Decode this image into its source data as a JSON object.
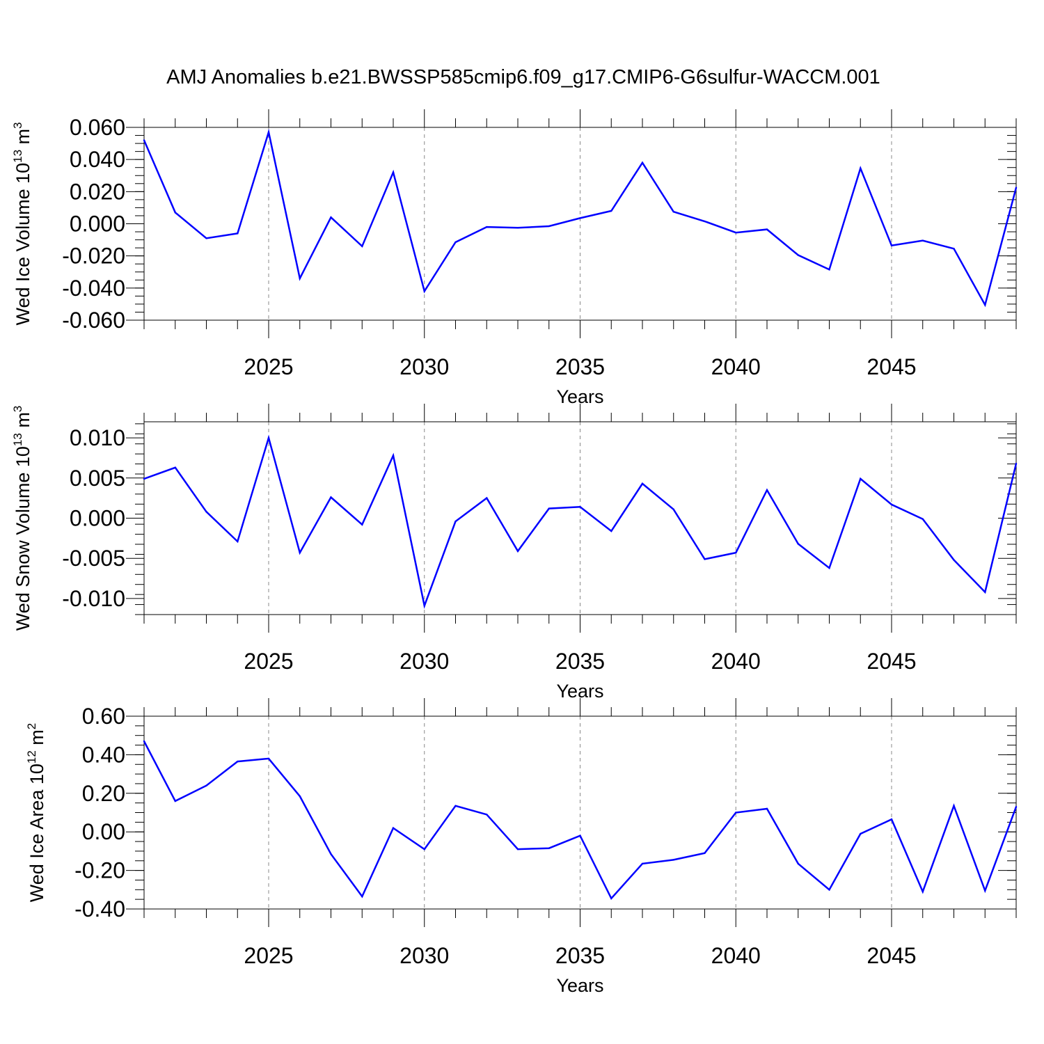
{
  "title": "AMJ Anomalies b.e21.BWSSP585cmip6.f09_g17.CMIP6-G6sulfur-WACCM.001",
  "colors": {
    "series": "#0000ff",
    "axis": "#000000",
    "grid": "#888888"
  },
  "chart_data": [
    {
      "type": "line",
      "ylabel": {
        "main": "Wed Ice Volume 10",
        "exp": "13",
        "unit": "m",
        "unit_exp": "3"
      },
      "xlabel": "Years",
      "xlim": [
        2021,
        2049
      ],
      "ylim": [
        -0.06,
        0.06
      ],
      "yticks": [
        -0.06,
        -0.04,
        -0.02,
        0.0,
        0.02,
        0.04,
        0.06
      ],
      "ytick_labels": [
        "-0.060",
        "-0.040",
        "-0.020",
        "0.000",
        "0.020",
        "0.040",
        "0.060"
      ],
      "xticks": [
        2025,
        2030,
        2035,
        2040,
        2045
      ],
      "xtick_labels": [
        "2025",
        "2030",
        "2035",
        "2040",
        "2045"
      ],
      "grid": "dashed vertical at major x ticks",
      "x": [
        2021,
        2022,
        2023,
        2024,
        2025,
        2026,
        2027,
        2028,
        2029,
        2030,
        2031,
        2032,
        2033,
        2034,
        2035,
        2036,
        2037,
        2038,
        2039,
        2040,
        2041,
        2042,
        2043,
        2044,
        2045,
        2046,
        2047,
        2048,
        2049
      ],
      "values": [
        0.052,
        0.007,
        -0.009,
        -0.006,
        0.057,
        -0.034,
        0.004,
        -0.014,
        0.032,
        -0.042,
        -0.0115,
        -0.002,
        -0.0025,
        -0.0015,
        0.0035,
        0.008,
        0.038,
        0.0075,
        0.0015,
        -0.0055,
        -0.0035,
        -0.0195,
        -0.0285,
        0.0345,
        -0.0135,
        -0.0105,
        -0.0155,
        -0.0505,
        0.0225
      ]
    },
    {
      "type": "line",
      "ylabel": {
        "main": "Wed Snow Volume 10",
        "exp": "13",
        "unit": "m",
        "unit_exp": "3"
      },
      "xlabel": "Years",
      "xlim": [
        2021,
        2049
      ],
      "ylim": [
        -0.012,
        0.012
      ],
      "yticks": [
        -0.01,
        -0.005,
        0.0,
        0.005,
        0.01
      ],
      "ytick_labels": [
        "-0.010",
        "-0.005",
        "0.000",
        "0.005",
        "0.010"
      ],
      "xticks": [
        2025,
        2030,
        2035,
        2040,
        2045
      ],
      "xtick_labels": [
        "2025",
        "2030",
        "2035",
        "2040",
        "2045"
      ],
      "grid": "dashed vertical at major x ticks",
      "x": [
        2021,
        2022,
        2023,
        2024,
        2025,
        2026,
        2027,
        2028,
        2029,
        2030,
        2031,
        2032,
        2033,
        2034,
        2035,
        2036,
        2037,
        2038,
        2039,
        2040,
        2041,
        2042,
        2043,
        2044,
        2045,
        2046,
        2047,
        2048,
        2049
      ],
      "values": [
        0.0049,
        0.0063,
        0.0008,
        -0.0029,
        0.01,
        -0.0043,
        0.0026,
        -0.0008,
        0.0078,
        -0.0109,
        -0.0004,
        0.0025,
        -0.0041,
        0.0012,
        0.0014,
        -0.0016,
        0.0043,
        0.0011,
        -0.0051,
        -0.0043,
        0.0035,
        -0.0032,
        -0.0062,
        0.0049,
        0.0017,
        -0.0001,
        -0.0052,
        -0.0092,
        0.0068
      ]
    },
    {
      "type": "line",
      "ylabel": {
        "main": "Wed Ice Area 10",
        "exp": "12",
        "unit": "m",
        "unit_exp": "2"
      },
      "xlabel": "Years",
      "xlim": [
        2021,
        2049
      ],
      "ylim": [
        -0.4,
        0.6
      ],
      "yticks": [
        -0.4,
        -0.2,
        0.0,
        0.2,
        0.4,
        0.6
      ],
      "ytick_labels": [
        "-0.40",
        "-0.20",
        "0.00",
        "0.20",
        "0.40",
        "0.60"
      ],
      "xticks": [
        2025,
        2030,
        2035,
        2040,
        2045
      ],
      "xtick_labels": [
        "2025",
        "2030",
        "2035",
        "2040",
        "2045"
      ],
      "grid": "dashed vertical at major x ticks",
      "x": [
        2021,
        2022,
        2023,
        2024,
        2025,
        2026,
        2027,
        2028,
        2029,
        2030,
        2031,
        2032,
        2033,
        2034,
        2035,
        2036,
        2037,
        2038,
        2039,
        2040,
        2041,
        2042,
        2043,
        2044,
        2045,
        2046,
        2047,
        2048,
        2049
      ],
      "values": [
        0.47,
        0.16,
        0.24,
        0.365,
        0.38,
        0.185,
        -0.115,
        -0.335,
        0.02,
        -0.09,
        0.135,
        0.09,
        -0.09,
        -0.085,
        -0.02,
        -0.345,
        -0.165,
        -0.145,
        -0.11,
        0.1,
        0.12,
        -0.165,
        -0.3,
        -0.01,
        0.065,
        -0.31,
        0.135,
        -0.305,
        0.13
      ]
    }
  ]
}
